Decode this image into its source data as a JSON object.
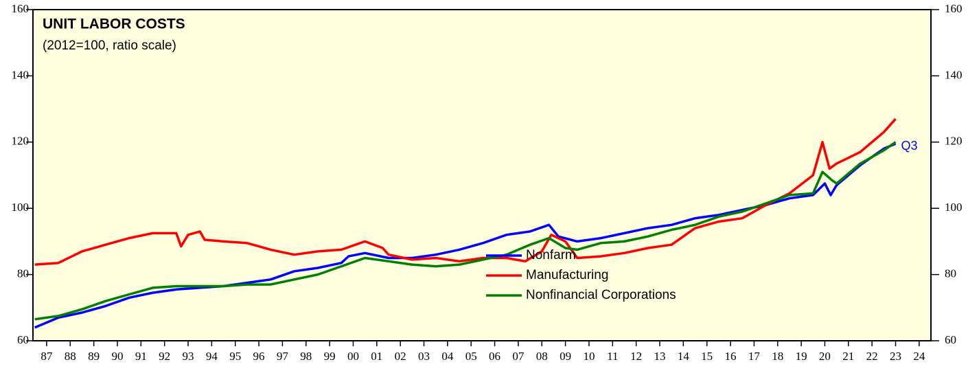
{
  "chart_data": {
    "type": "line",
    "title": "UNIT LABOR COSTS",
    "subtitle": "(2012=100, ratio scale)",
    "annotation": "Q3",
    "legend": "center",
    "xlim": [
      1986.92,
      2025.0
    ],
    "xticks": [
      {
        "value": 1987.5,
        "label": "87"
      },
      {
        "value": 1988.5,
        "label": "88"
      },
      {
        "value": 1989.5,
        "label": "89"
      },
      {
        "value": 1990.5,
        "label": "90"
      },
      {
        "value": 1991.5,
        "label": "91"
      },
      {
        "value": 1992.5,
        "label": "92"
      },
      {
        "value": 1993.5,
        "label": "93"
      },
      {
        "value": 1994.5,
        "label": "94"
      },
      {
        "value": 1995.5,
        "label": "95"
      },
      {
        "value": 1996.5,
        "label": "96"
      },
      {
        "value": 1997.5,
        "label": "97"
      },
      {
        "value": 1998.5,
        "label": "98"
      },
      {
        "value": 1999.5,
        "label": "99"
      },
      {
        "value": 2000.5,
        "label": "00"
      },
      {
        "value": 2001.5,
        "label": "01"
      },
      {
        "value": 2002.5,
        "label": "02"
      },
      {
        "value": 2003.5,
        "label": "03"
      },
      {
        "value": 2004.5,
        "label": "04"
      },
      {
        "value": 2005.5,
        "label": "05"
      },
      {
        "value": 2006.5,
        "label": "06"
      },
      {
        "value": 2007.5,
        "label": "07"
      },
      {
        "value": 2008.5,
        "label": "08"
      },
      {
        "value": 2009.5,
        "label": "09"
      },
      {
        "value": 2010.5,
        "label": "10"
      },
      {
        "value": 2011.5,
        "label": "11"
      },
      {
        "value": 2012.5,
        "label": "12"
      },
      {
        "value": 2013.5,
        "label": "13"
      },
      {
        "value": 2014.5,
        "label": "14"
      },
      {
        "value": 2015.5,
        "label": "15"
      },
      {
        "value": 2016.5,
        "label": "16"
      },
      {
        "value": 2017.5,
        "label": "17"
      },
      {
        "value": 2018.5,
        "label": "18"
      },
      {
        "value": 2019.5,
        "label": "19"
      },
      {
        "value": 2020.5,
        "label": "20"
      },
      {
        "value": 2021.5,
        "label": "21"
      },
      {
        "value": 2022.5,
        "label": "22"
      },
      {
        "value": 2023.5,
        "label": "23"
      },
      {
        "value": 2024.5,
        "label": "24"
      }
    ],
    "ylim": [
      60,
      160
    ],
    "yticks": [
      60,
      80,
      100,
      120,
      140,
      160
    ],
    "log_scale": false,
    "series": [
      {
        "name": "Nonfarm",
        "color": "#0000ff",
        "x": [
          1987,
          1988,
          1989,
          1990,
          1991,
          1992,
          1993,
          1994,
          1995,
          1996,
          1997,
          1998,
          1999,
          2000,
          2000.3,
          2001,
          2002,
          2003,
          2004,
          2005,
          2006,
          2007,
          2008,
          2008.8,
          2009.2,
          2010,
          2011,
          2012,
          2013,
          2014,
          2015,
          2016,
          2017,
          2018,
          2019,
          2020,
          2020.5,
          2020.75,
          2021,
          2022,
          2023,
          2023.5
        ],
        "values": [
          64,
          67,
          68.5,
          70.5,
          73,
          74.5,
          75.5,
          76,
          76.5,
          77.5,
          78.5,
          81,
          82,
          83.5,
          85.5,
          86.5,
          85,
          85,
          86,
          87.5,
          89.5,
          92,
          93,
          95,
          91.5,
          90,
          91,
          92.5,
          94,
          95,
          97,
          98,
          99.5,
          101,
          103,
          104,
          107.5,
          104,
          107,
          113,
          118,
          119.5
        ]
      },
      {
        "name": "Manufacturing",
        "color": "#ff0000",
        "x": [
          1987,
          1988,
          1989,
          1990,
          1991,
          1992,
          1993,
          1993.2,
          1993.5,
          1994,
          1994.2,
          1995,
          1996,
          1997,
          1998,
          1999,
          2000,
          2001,
          2001.75,
          2002,
          2003,
          2004,
          2005,
          2006,
          2007,
          2007.8,
          2008.5,
          2008.9,
          2009.5,
          2010,
          2011,
          2012,
          2013,
          2014,
          2015,
          2016,
          2017,
          2018,
          2019,
          2020,
          2020.4,
          2020.7,
          2021,
          2022,
          2023,
          2023.5
        ],
        "values": [
          83,
          83.5,
          87,
          89,
          91,
          92.5,
          92.5,
          88.5,
          92,
          93,
          90.5,
          90,
          89.5,
          87.5,
          86,
          87,
          87.5,
          90,
          88,
          86,
          84.5,
          85,
          84,
          85,
          85,
          84,
          87,
          92,
          90,
          85,
          85.5,
          86.5,
          88,
          89,
          94,
          96,
          97,
          101,
          104.5,
          110,
          120,
          112,
          113.5,
          117,
          123,
          127
        ]
      },
      {
        "name": "Nonfinancial Corporations",
        "color": "#008000",
        "x": [
          1987,
          1988,
          1989,
          1990,
          1991,
          1992,
          1993,
          1994,
          1995,
          1996,
          1997,
          1998,
          1999,
          2000,
          2001,
          2002,
          2003,
          2004,
          2005,
          2006,
          2007,
          2008,
          2008.8,
          2009.5,
          2010,
          2011,
          2012,
          2013,
          2014,
          2015,
          2016,
          2017,
          2018,
          2019,
          2020,
          2020.4,
          2020.8,
          2021,
          2022,
          2023,
          2023.5
        ],
        "values": [
          66.5,
          67.5,
          69.5,
          72,
          74,
          76,
          76.5,
          76.5,
          76.5,
          77,
          77,
          78.5,
          80,
          82.5,
          85,
          84,
          83,
          82.5,
          83,
          84.5,
          86,
          89,
          91,
          88,
          87.5,
          89.5,
          90,
          91.5,
          93.5,
          95,
          97.5,
          99,
          101.5,
          104,
          104.5,
          111,
          108.5,
          107.5,
          113.5,
          117.5,
          120
        ]
      }
    ]
  }
}
